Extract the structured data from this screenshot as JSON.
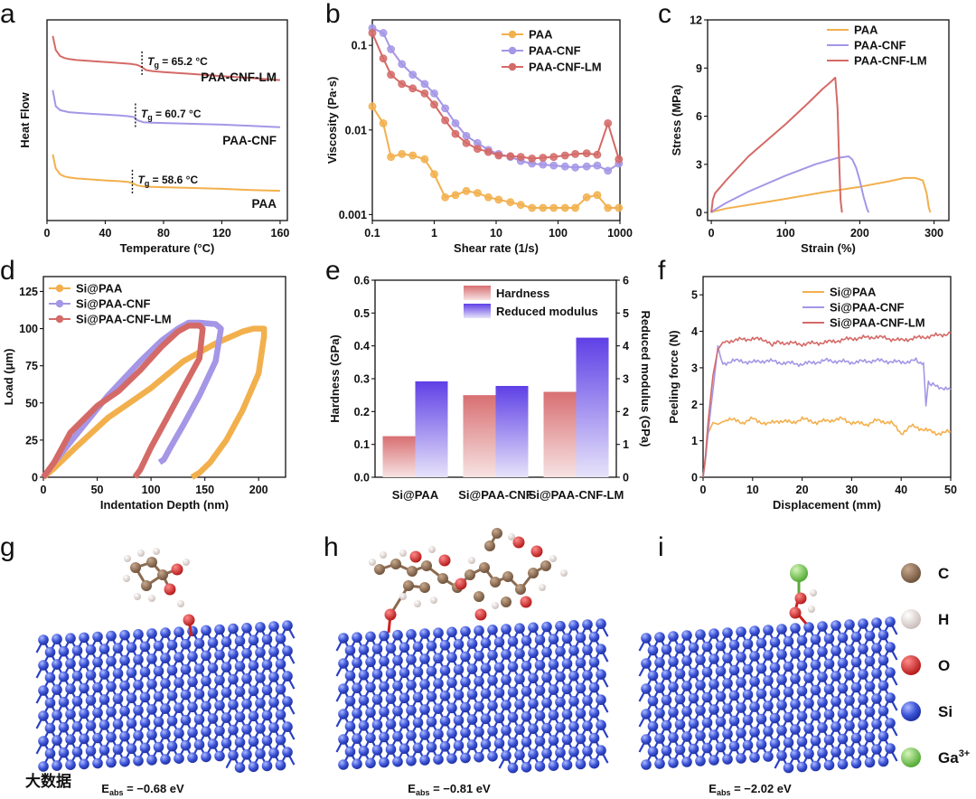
{
  "panel_labels": [
    "a",
    "b",
    "c",
    "d",
    "e",
    "f",
    "g",
    "h",
    "i"
  ],
  "colors": {
    "PAA": "#f2b04d",
    "PAA-CNF": "#a596e6",
    "PAA-CNF-LM": "#d46a67",
    "hardness": "#d9787a",
    "modulus": "#6a4ee8"
  },
  "chart_data": [
    {
      "id": "a",
      "type": "line",
      "xlabel": "Temperature (°C)",
      "ylabel": "Heat Flow",
      "xlim": [
        0,
        165
      ],
      "xticks": [
        0,
        40,
        80,
        120,
        160
      ],
      "series": [
        {
          "name": "PAA-CNF-LM",
          "x": [
            4,
            6,
            9,
            12,
            15,
            20,
            30,
            40,
            50,
            58,
            62,
            65,
            68,
            72,
            80,
            100,
            120,
            140,
            160
          ],
          "y": [
            0.92,
            0.85,
            0.82,
            0.81,
            0.805,
            0.8,
            0.795,
            0.79,
            0.785,
            0.78,
            0.775,
            0.765,
            0.75,
            0.745,
            0.74,
            0.73,
            0.72,
            0.71,
            0.7
          ]
        },
        {
          "name": "PAA-CNF",
          "x": [
            4,
            6,
            9,
            12,
            15,
            20,
            30,
            40,
            50,
            56,
            60,
            62,
            66,
            72,
            80,
            100,
            120,
            140,
            160
          ],
          "y": [
            0.65,
            0.57,
            0.55,
            0.545,
            0.54,
            0.537,
            0.532,
            0.528,
            0.524,
            0.52,
            0.515,
            0.5,
            0.49,
            0.488,
            0.486,
            0.482,
            0.478,
            0.472,
            0.465
          ]
        },
        {
          "name": "PAA",
          "x": [
            4,
            6,
            9,
            12,
            15,
            20,
            30,
            40,
            50,
            56,
            59,
            62,
            66,
            72,
            80,
            100,
            120,
            140,
            160
          ],
          "y": [
            0.33,
            0.26,
            0.23,
            0.22,
            0.215,
            0.21,
            0.205,
            0.2,
            0.196,
            0.192,
            0.185,
            0.175,
            0.17,
            0.168,
            0.166,
            0.162,
            0.158,
            0.152,
            0.148
          ]
        }
      ],
      "annotations": [
        {
          "label": "65.2 °C",
          "x": 65.2
        },
        {
          "label": "60.7 °C",
          "x": 60.7
        },
        {
          "label": "58.6 °C",
          "x": 58.6
        }
      ],
      "tg_symbol": "T",
      "tg_sub": "g",
      "tg_eq": " = ",
      "curve_labels": [
        "PAA-CNF-LM",
        "PAA-CNF",
        "PAA"
      ]
    },
    {
      "id": "b",
      "type": "line",
      "scale": "log-log",
      "xlabel": "Shear rate (1/s)",
      "ylabel": "Viscosity (Pa·s)",
      "xlim": [
        0.1,
        1000
      ],
      "ylim": [
        0.00085,
        0.2
      ],
      "xtick_labels": [
        "0.1",
        "1",
        "10",
        "100",
        "1000"
      ],
      "ytick_labels": [
        "0.001",
        "0.01",
        "0.1"
      ],
      "legend_position": "top-right",
      "series": [
        {
          "name": "PAA",
          "x": [
            0.1,
            0.15,
            0.2,
            0.3,
            0.45,
            0.7,
            1.0,
            1.5,
            2.2,
            3.3,
            5,
            7.5,
            11,
            17,
            25,
            38,
            57,
            85,
            130,
            190,
            290,
            430,
            640,
            960
          ],
          "y": [
            0.019,
            0.012,
            0.0048,
            0.0052,
            0.005,
            0.0045,
            0.003,
            0.0016,
            0.0017,
            0.0019,
            0.0018,
            0.0016,
            0.0015,
            0.0014,
            0.0013,
            0.0012,
            0.0012,
            0.0012,
            0.0012,
            0.0012,
            0.0016,
            0.0017,
            0.0012,
            0.0012
          ]
        },
        {
          "name": "PAA-CNF",
          "x": [
            0.1,
            0.15,
            0.2,
            0.3,
            0.45,
            0.7,
            1.0,
            1.5,
            2.2,
            3.3,
            5,
            7.5,
            11,
            17,
            25,
            38,
            57,
            85,
            130,
            190,
            290,
            430,
            640,
            960
          ],
          "y": [
            0.16,
            0.14,
            0.09,
            0.06,
            0.045,
            0.035,
            0.027,
            0.018,
            0.012,
            0.0085,
            0.007,
            0.0058,
            0.0052,
            0.0048,
            0.0043,
            0.004,
            0.0039,
            0.0038,
            0.0037,
            0.0036,
            0.0037,
            0.0038,
            0.0033,
            0.004
          ]
        },
        {
          "name": "PAA-CNF-LM",
          "x": [
            0.1,
            0.15,
            0.2,
            0.3,
            0.45,
            0.7,
            1.0,
            1.5,
            2.2,
            3.3,
            5,
            7.5,
            11,
            17,
            25,
            38,
            57,
            85,
            130,
            190,
            290,
            430,
            640,
            960
          ],
          "y": [
            0.14,
            0.07,
            0.045,
            0.035,
            0.031,
            0.027,
            0.02,
            0.013,
            0.009,
            0.007,
            0.006,
            0.0055,
            0.005,
            0.0049,
            0.0048,
            0.0046,
            0.0047,
            0.0048,
            0.005,
            0.0052,
            0.0053,
            0.0051,
            0.012,
            0.0045
          ]
        }
      ]
    },
    {
      "id": "c",
      "type": "line",
      "xlabel": "Strain (%)",
      "ylabel": "Stress (MPa)",
      "xlim": [
        -5,
        320
      ],
      "ylim": [
        -0.5,
        12
      ],
      "xticks": [
        0,
        100,
        200,
        300
      ],
      "yticks": [
        0,
        3,
        6,
        9,
        12
      ],
      "legend_position": "top-right",
      "series": [
        {
          "name": "PAA",
          "x": [
            0,
            2,
            20,
            60,
            100,
            150,
            200,
            240,
            260,
            275,
            285,
            290,
            293,
            295
          ],
          "y": [
            0,
            0.05,
            0.25,
            0.55,
            0.85,
            1.25,
            1.6,
            1.95,
            2.15,
            2.15,
            2.0,
            1.2,
            0.3,
            0
          ]
        },
        {
          "name": "PAA-CNF",
          "x": [
            0,
            2,
            20,
            50,
            100,
            140,
            170,
            185,
            190,
            195,
            200,
            205,
            210,
            212
          ],
          "y": [
            0,
            0.1,
            0.6,
            1.3,
            2.3,
            3.0,
            3.4,
            3.5,
            3.3,
            2.8,
            2.0,
            1.0,
            0.2,
            0
          ]
        },
        {
          "name": "PAA-CNF-LM",
          "x": [
            0,
            2,
            5,
            20,
            50,
            100,
            130,
            150,
            160,
            167,
            170,
            172,
            174,
            176
          ],
          "y": [
            0,
            0.8,
            1.2,
            2.0,
            3.5,
            5.5,
            6.8,
            7.7,
            8.1,
            8.4,
            6.5,
            3.5,
            0.8,
            0
          ]
        }
      ]
    },
    {
      "id": "d",
      "type": "line",
      "xlabel": "Indentation Depth (nm)",
      "ylabel": "Load (μm)",
      "xlim": [
        0,
        225
      ],
      "ylim": [
        0,
        135
      ],
      "xticks": [
        0,
        50,
        100,
        150,
        200
      ],
      "yticks": [
        0,
        25,
        50,
        75,
        100,
        125
      ],
      "legend_position": "top-left",
      "series": [
        {
          "name": "Si@PAA",
          "x": [
            0,
            10,
            30,
            60,
            100,
            130,
            160,
            185,
            195,
            205,
            205,
            200,
            185,
            170,
            155,
            145,
            138
          ],
          "y": [
            0,
            6,
            20,
            40,
            60,
            78,
            90,
            98,
            100,
            100,
            95,
            70,
            45,
            25,
            10,
            3,
            0
          ]
        },
        {
          "name": "Si@PAA-CNF",
          "x": [
            0,
            10,
            30,
            60,
            90,
            110,
            125,
            135,
            145,
            160,
            165,
            160,
            145,
            130,
            118,
            112,
            108
          ],
          "y": [
            0,
            10,
            28,
            55,
            78,
            92,
            100,
            104,
            104,
            103,
            100,
            78,
            55,
            35,
            20,
            12,
            10
          ]
        },
        {
          "name": "Si@PAA-CNF-LM",
          "x": [
            0,
            10,
            25,
            50,
            70,
            90,
            110,
            125,
            135,
            145,
            148,
            145,
            130,
            115,
            100,
            90,
            85
          ],
          "y": [
            0,
            10,
            30,
            48,
            58,
            72,
            88,
            98,
            102,
            102,
            100,
            80,
            60,
            40,
            20,
            5,
            0
          ]
        }
      ]
    },
    {
      "id": "e",
      "type": "bar",
      "categories": [
        "Si@PAA",
        "Si@PAA-CNF",
        "Si@PAA-CNF-LM"
      ],
      "ylabel": "Hardness (GPa)",
      "y2label": "Reduced modulus (GPa)",
      "ylim": [
        0,
        0.6
      ],
      "y2lim": [
        0,
        6
      ],
      "yticks": [
        0.0,
        0.1,
        0.2,
        0.3,
        0.4,
        0.5,
        0.6
      ],
      "y2ticks": [
        0,
        1,
        2,
        3,
        4,
        5,
        6
      ],
      "legend_position": "top-center",
      "series": [
        {
          "name": "Hardness",
          "axis": "left",
          "values": [
            0.125,
            0.25,
            0.26
          ]
        },
        {
          "name": "Reduced modulus",
          "axis": "right",
          "values": [
            2.92,
            2.78,
            4.25
          ]
        }
      ]
    },
    {
      "id": "f",
      "type": "line",
      "xlabel": "Displacement (mm)",
      "ylabel": "Peeling force (N)",
      "xlim": [
        0,
        50
      ],
      "ylim": [
        0,
        5.5
      ],
      "xticks": [
        0,
        10,
        20,
        30,
        40,
        50
      ],
      "yticks": [
        0,
        1,
        2,
        3,
        4,
        5
      ],
      "legend_position": "top-right",
      "series": [
        {
          "name": "Si@PAA",
          "x": [
            0,
            0.5,
            1,
            2,
            3,
            5,
            8,
            10,
            13,
            15,
            18,
            20,
            23,
            25,
            28,
            30,
            33,
            35,
            38,
            40,
            42,
            45,
            47,
            50
          ],
          "y": [
            0,
            0.5,
            1.2,
            1.5,
            1.45,
            1.6,
            1.5,
            1.6,
            1.45,
            1.55,
            1.5,
            1.6,
            1.5,
            1.55,
            1.6,
            1.5,
            1.45,
            1.55,
            1.5,
            1.2,
            1.4,
            1.3,
            1.2,
            1.25
          ]
        },
        {
          "name": "Si@PAA-CNF",
          "x": [
            0,
            0.5,
            1,
            2,
            3,
            3.5,
            4,
            6,
            10,
            13,
            15,
            20,
            25,
            30,
            35,
            40,
            43,
            44.5,
            45,
            45.5,
            47,
            50
          ],
          "y": [
            0,
            0.5,
            1.2,
            2.4,
            3.6,
            3.3,
            3.1,
            3.2,
            3.15,
            3.2,
            3.15,
            3.1,
            3.2,
            3.15,
            3.2,
            3.15,
            3.2,
            3.1,
            2.0,
            2.6,
            2.5,
            2.4
          ]
        },
        {
          "name": "Si@PAA-CNF-LM",
          "x": [
            0,
            0.5,
            1,
            2,
            3,
            4,
            6,
            10,
            13,
            14,
            15,
            20,
            25,
            30,
            35,
            40,
            42,
            45,
            48,
            50
          ],
          "y": [
            0,
            0.6,
            1.5,
            2.8,
            3.5,
            3.7,
            3.75,
            3.8,
            3.75,
            3.6,
            3.7,
            3.65,
            3.7,
            3.8,
            3.85,
            3.75,
            3.8,
            3.85,
            3.9,
            3.95
          ]
        }
      ]
    }
  ],
  "structures": [
    {
      "id": "g",
      "eabs_label": "E",
      "eabs_sub": "abs",
      "eabs_value": " = −0.68 eV"
    },
    {
      "id": "h",
      "eabs_label": "E",
      "eabs_sub": "abs",
      "eabs_value": " = −0.81 eV"
    },
    {
      "id": "i",
      "eabs_label": "E",
      "eabs_sub": "abs",
      "eabs_value": " = −2.02 eV"
    }
  ],
  "atom_key": [
    {
      "label": "C",
      "color": "#8b6a4f"
    },
    {
      "label": "H",
      "color": "#e6dcd8"
    },
    {
      "label": "O",
      "color": "#dd2a2a"
    },
    {
      "label": "Si",
      "color": "#4d63dc"
    },
    {
      "label": "Ga",
      "sup": "3+",
      "color": "#7fcf5a"
    }
  ],
  "watermark": "大数据"
}
